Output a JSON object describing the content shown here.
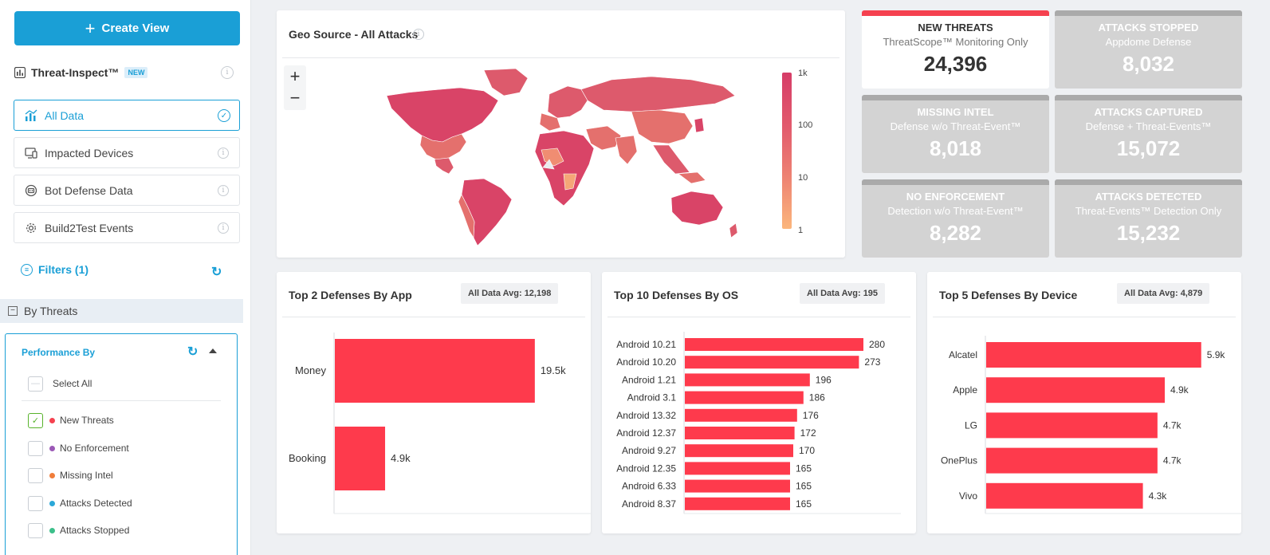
{
  "sidebar": {
    "create_view": "Create View",
    "threat_inspect": {
      "label": "Threat-Inspect™",
      "badge": "NEW"
    },
    "nav": [
      {
        "label": "All Data",
        "icon": "chart-icon"
      },
      {
        "label": "Impacted Devices",
        "icon": "monitor-icon"
      },
      {
        "label": "Bot Defense Data",
        "icon": "bot-icon"
      },
      {
        "label": "Build2Test Events",
        "icon": "gear-icon"
      }
    ],
    "filters_label": "Filters (1)",
    "by_threats": "By Threats",
    "performance": {
      "title": "Performance By",
      "select_all": "Select All",
      "items": [
        {
          "label": "New Threats",
          "color": "#f5414f",
          "checked": true
        },
        {
          "label": "No Enforcement",
          "color": "#9b59b6",
          "checked": false
        },
        {
          "label": "Missing Intel",
          "color": "#f07d3a",
          "checked": false
        },
        {
          "label": "Attacks Detected",
          "color": "#2ba8d8",
          "checked": false
        },
        {
          "label": "Attacks Stopped",
          "color": "#3cbf8a",
          "checked": false
        }
      ]
    }
  },
  "geo": {
    "title": "Geo Source - All Attacks",
    "zoom_in": "+",
    "zoom_out": "−",
    "legend": [
      "1k",
      "100",
      "10",
      "1"
    ]
  },
  "tiles": [
    {
      "title": "NEW THREATS",
      "subtitle": "ThreatScope™ Monitoring Only",
      "value": "24,396",
      "highlight": true
    },
    {
      "title": "ATTACKS STOPPED",
      "subtitle": "Appdome Defense",
      "value": "8,032",
      "highlight": false
    },
    {
      "title": "MISSING INTEL",
      "subtitle": "Defense w/o Threat-Event™",
      "value": "8,018",
      "highlight": false
    },
    {
      "title": "ATTACKS CAPTURED",
      "subtitle": "Defense + Threat-Events™",
      "value": "15,072",
      "highlight": false
    },
    {
      "title": "NO ENFORCEMENT",
      "subtitle": "Detection w/o Threat-Event™",
      "value": "8,282",
      "highlight": false
    },
    {
      "title": "ATTACKS DETECTED",
      "subtitle": "Threat-Events™ Detection Only",
      "value": "15,232",
      "highlight": false
    }
  ],
  "chart_data": [
    {
      "type": "bar",
      "orientation": "horizontal",
      "title": "Top 2 Defenses By App",
      "avg_badge": "All Data Avg: 12,198",
      "categories": [
        "Money",
        "Booking"
      ],
      "values": [
        19500,
        4900
      ],
      "labels": [
        "19.5k",
        "4.9k"
      ],
      "xlim": [
        0,
        22000
      ],
      "color": "#fe3a4c"
    },
    {
      "type": "bar",
      "orientation": "horizontal",
      "title": "Top 10 Defenses By OS",
      "avg_badge": "All Data Avg: 195",
      "categories": [
        "Android 10.21",
        "Android 10.20",
        "Android 1.21",
        "Android 3.1",
        "Android 13.32",
        "Android 12.37",
        "Android 9.27",
        "Android 12.35",
        "Android 6.33",
        "Android 8.37"
      ],
      "values": [
        280,
        273,
        196,
        186,
        176,
        172,
        170,
        165,
        165,
        165
      ],
      "labels": [
        "280",
        "273",
        "196",
        "186",
        "176",
        "172",
        "170",
        "165",
        "165",
        "165"
      ],
      "xlim": [
        0,
        290
      ],
      "color": "#fe3a4c"
    },
    {
      "type": "bar",
      "orientation": "horizontal",
      "title": "Top 5 Defenses By Device",
      "avg_badge": "All Data Avg: 4,879",
      "categories": [
        "Alcatel",
        "Apple",
        "LG",
        "OnePlus",
        "Vivo"
      ],
      "values": [
        5900,
        4900,
        4700,
        4700,
        4300
      ],
      "labels": [
        "5.9k",
        "4.9k",
        "4.7k",
        "4.7k",
        "4.3k"
      ],
      "xlim": [
        0,
        6300
      ],
      "color": "#fe3a4c"
    }
  ]
}
